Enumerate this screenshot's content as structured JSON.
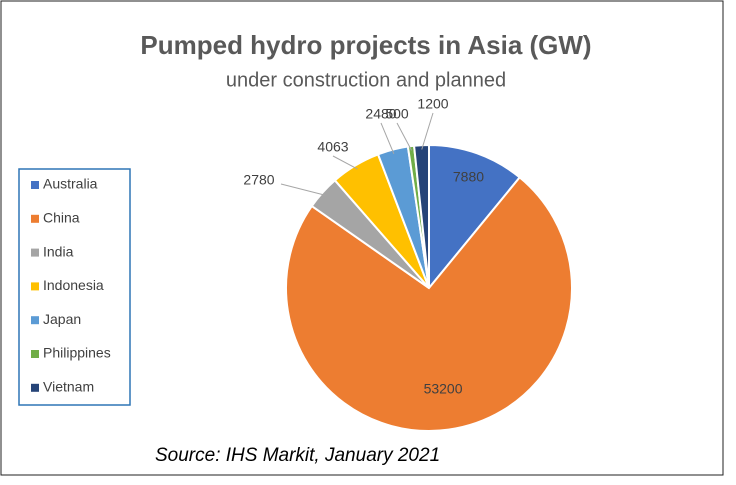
{
  "chart_data": {
    "type": "pie",
    "title": "Pumped hydro projects in Asia (GW)",
    "subtitle": "under construction and planned",
    "categories": [
      "Australia",
      "China",
      "India",
      "Indonesia",
      "Japan",
      "Philippines",
      "Vietnam"
    ],
    "values": [
      7880,
      53200,
      2780,
      4063,
      2480,
      500,
      1200
    ],
    "colors": [
      "#4472c4",
      "#ed7d31",
      "#a5a5a5",
      "#ffc000",
      "#5b9bd5",
      "#70ad47",
      "#264478"
    ],
    "legend": "left",
    "source": "Source: IHS Markit, January 2021"
  }
}
